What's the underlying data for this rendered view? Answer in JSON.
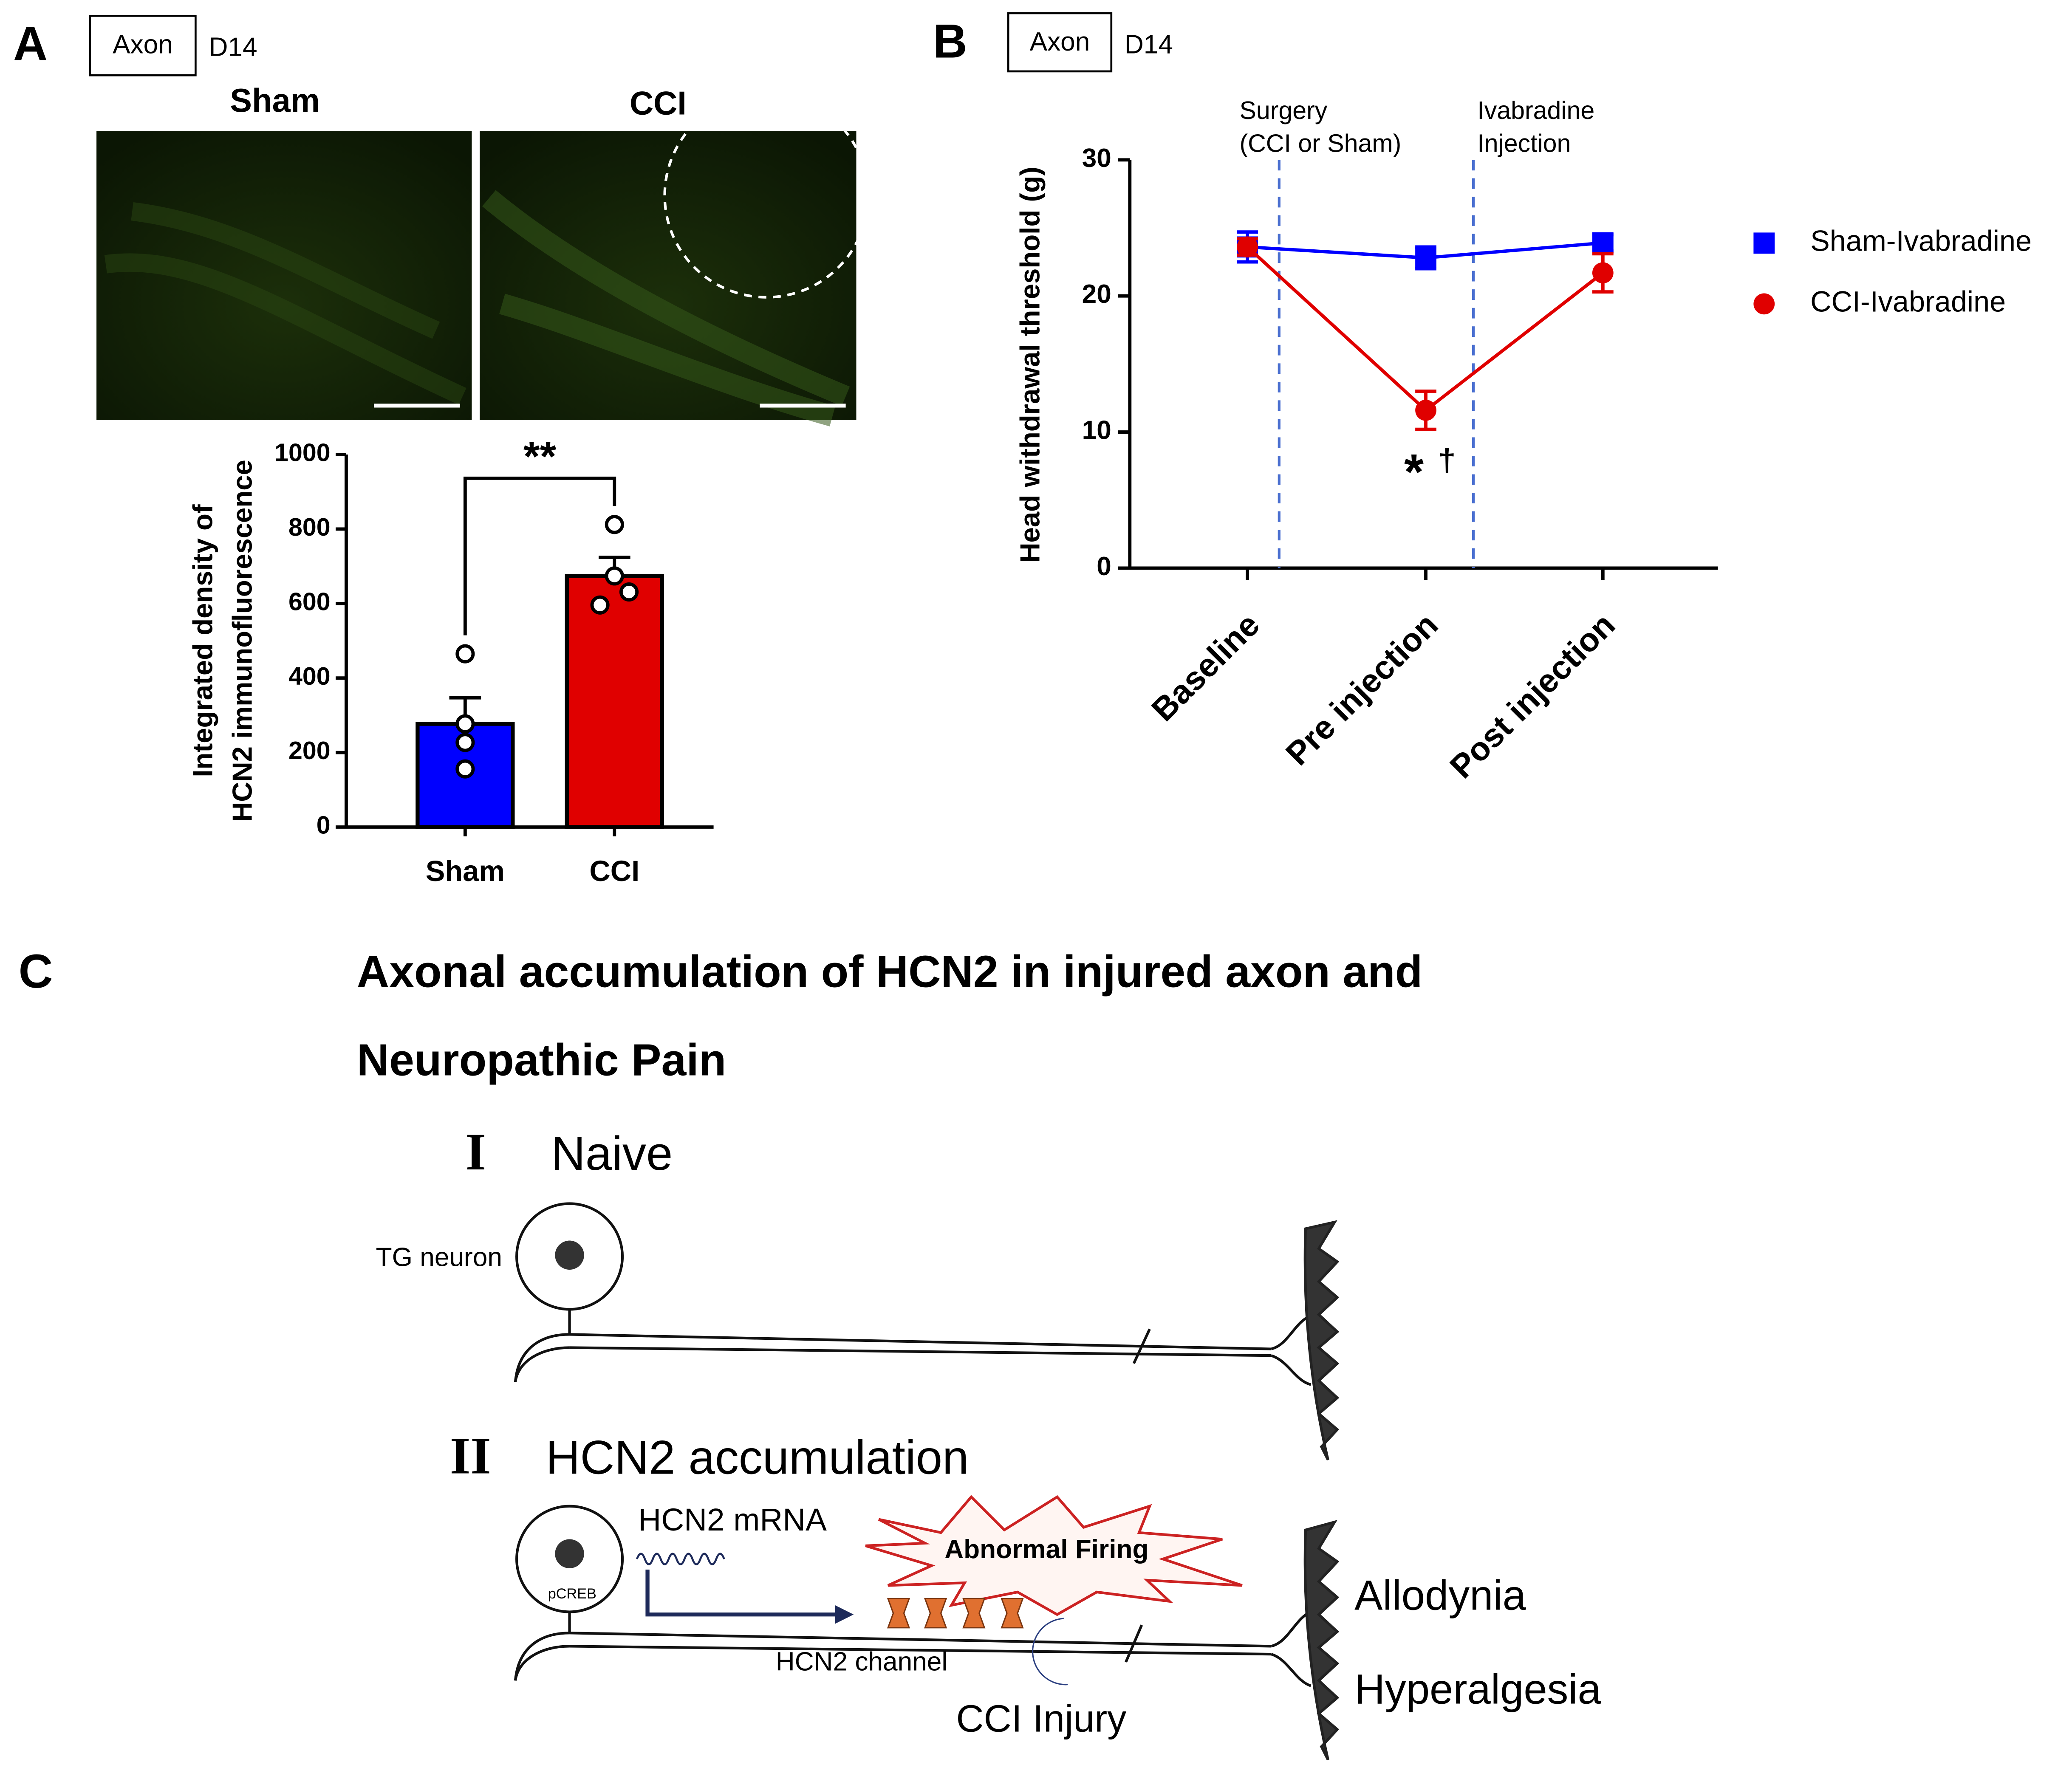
{
  "panel_labels": [
    "A",
    "B",
    "C"
  ],
  "panel_a": {
    "tags": [
      "Axon",
      "D14"
    ],
    "image_titles": [
      "Sham",
      "CCI"
    ]
  },
  "panel_b": {
    "tags": [
      "Axon",
      "D14"
    ]
  },
  "chart_data": [
    {
      "type": "bar",
      "ylabel": [
        "Integrated density of",
        "HCN2 immunofluorescence"
      ],
      "categories": [
        "Sham",
        "CCI"
      ],
      "values": [
        277,
        674
      ],
      "errors": [
        70,
        50
      ],
      "points": [
        [
          465,
          277,
          227,
          156
        ],
        [
          812,
          674,
          596,
          631
        ]
      ],
      "colors": [
        "#0000ff",
        "#e00000"
      ],
      "ylim": [
        0,
        1000
      ],
      "yticks": [
        0,
        200,
        400,
        600,
        800,
        1000
      ],
      "significance": "**"
    },
    {
      "type": "line",
      "ylabel": "Head withdrawal threshold (g)",
      "categories": [
        "Baseline",
        "Pre injection",
        "Post injection"
      ],
      "series": [
        {
          "name": "Sham-Ivabradine",
          "color": "#0000ff",
          "marker": "square",
          "values": [
            23.6,
            22.8,
            23.9
          ],
          "errors": [
            1.1,
            0.8,
            0.6
          ]
        },
        {
          "name": "CCI-Ivabradine",
          "color": "#e00000",
          "marker": "circle",
          "values": [
            23.6,
            11.6,
            21.7
          ],
          "errors": [
            0.6,
            1.4,
            1.4
          ]
        }
      ],
      "ylim": [
        0,
        30
      ],
      "yticks": [
        0,
        10,
        20,
        30
      ],
      "events": [
        {
          "label": [
            "Surgery",
            "(CCI or Sham)"
          ]
        },
        {
          "label": [
            "Ivabradine",
            "Injection"
          ]
        }
      ],
      "annotations": [
        "*",
        "†"
      ],
      "legend": "right"
    }
  ],
  "panel_c": {
    "title": [
      "Axonal accumulation of HCN2 in injured axon and",
      "Neuropathic Pain"
    ],
    "stages": [
      {
        "numeral": "I",
        "name": "Naive",
        "neuron_label": "TG neuron"
      },
      {
        "numeral": "II",
        "name": "HCN2 accumulation",
        "nucleus_label": "pCREB",
        "mrna_label": "HCN2 mRNA",
        "firing_label": "Abnormal Firing",
        "channel_label": "HCN2 channel",
        "injury_label": "CCI Injury",
        "outcomes": [
          "Allodynia",
          "Hyperalgesia"
        ]
      }
    ]
  }
}
